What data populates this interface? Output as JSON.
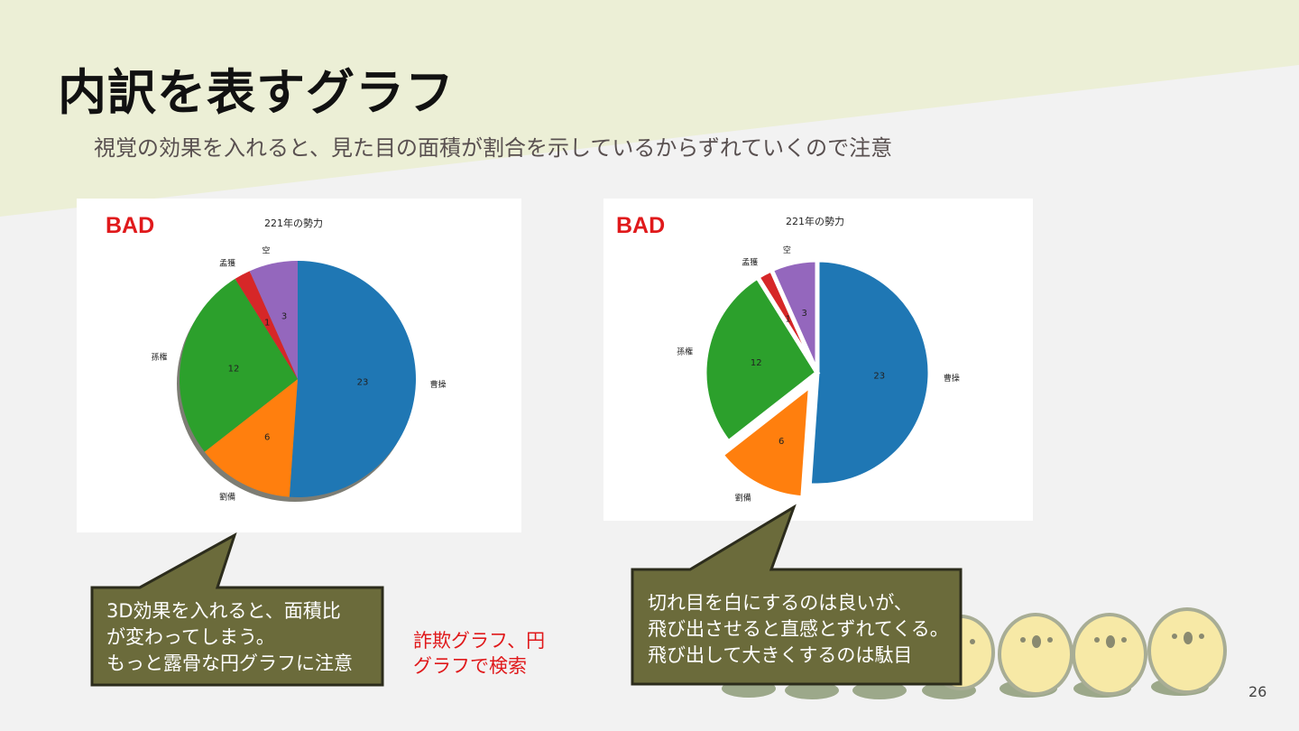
{
  "slide": {
    "title": "内訳を表すグラフ",
    "subtitle": "視覚の効果を入れると、見た目の面積が割合を示しているからずれていくので注意",
    "page_number": "26",
    "red_note_lines": [
      "詐欺グラフ、円",
      "グラフで検索"
    ],
    "callout_left_lines": [
      "3D効果を入れると、面積比",
      "が変わってしまう。",
      "もっと露骨な円グラフに注意"
    ],
    "callout_right_lines": [
      "切れ目を白にするのは良いが、",
      "飛び出させると直感とずれてくる。",
      "飛び出して大きくするのは駄目"
    ],
    "colors": {
      "bad": "#e0191b",
      "callout_fill": "#6b6b3b",
      "header_band": "#ecefd6"
    }
  },
  "chart_data": [
    {
      "type": "pie",
      "badge": "BAD",
      "title": "221年の勢力",
      "style": "3d-shadow",
      "slices": [
        {
          "label": "曹操",
          "value": 23,
          "color": "#1f77b4"
        },
        {
          "label": "劉備",
          "value": 6,
          "color": "#ff7f0e"
        },
        {
          "label": "孫権",
          "value": 12,
          "color": "#2ca02c"
        },
        {
          "label": "孟獲",
          "value": 1,
          "color": "#d62728"
        },
        {
          "label": "空",
          "value": 3,
          "color": "#9467bd"
        }
      ]
    },
    {
      "type": "pie",
      "badge": "BAD",
      "title": "221年の勢力",
      "style": "exploded",
      "exploded_label": "劉備",
      "slices": [
        {
          "label": "曹操",
          "value": 23,
          "color": "#1f77b4"
        },
        {
          "label": "劉備",
          "value": 6,
          "color": "#ff7f0e"
        },
        {
          "label": "孫権",
          "value": 12,
          "color": "#2ca02c"
        },
        {
          "label": "孟獲",
          "value": 1,
          "color": "#d62728"
        },
        {
          "label": "空",
          "value": 3,
          "color": "#9467bd"
        }
      ]
    }
  ]
}
